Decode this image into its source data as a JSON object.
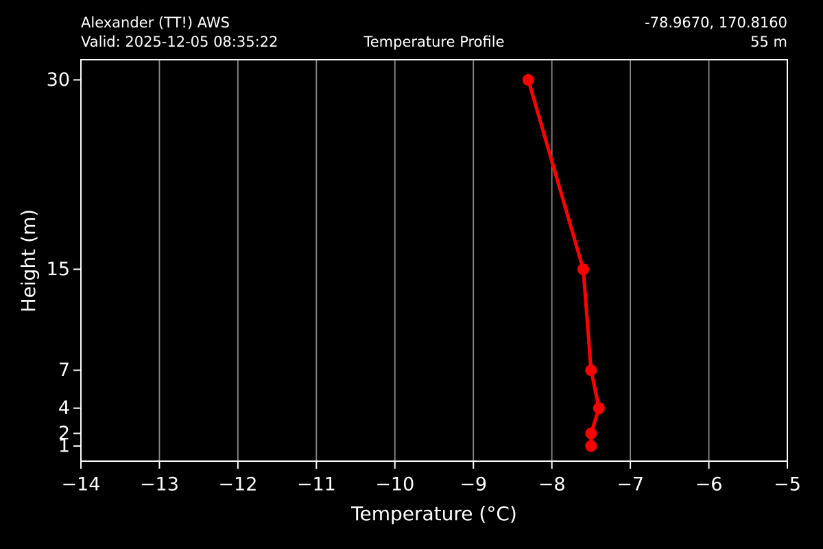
{
  "header": {
    "station": "Alexander (TT!) AWS",
    "valid": "Valid: 2025-12-05 08:35:22",
    "title": "Temperature Profile",
    "coordinates": "-78.9670, 170.8160",
    "elevation": "55 m"
  },
  "chart_data": {
    "type": "line",
    "title": "Temperature Profile",
    "xlabel": "Temperature (°C)",
    "ylabel": "Height (m)",
    "xlim": [
      -14,
      -5
    ],
    "ylim": [
      -0.2,
      31.6
    ],
    "xticks": [
      -14,
      -13,
      -12,
      -11,
      -10,
      -9,
      -8,
      -7,
      -6,
      -5
    ],
    "xtick_labels": [
      "−14",
      "−13",
      "−12",
      "−11",
      "−10",
      "−9",
      "−8",
      "−7",
      "−6",
      "−5"
    ],
    "yticks": [
      1,
      2,
      4,
      7,
      15,
      30
    ],
    "ytick_labels": [
      "1",
      "2",
      "4",
      "7",
      "15",
      "30"
    ],
    "grid": {
      "vertical": true,
      "horizontal": false
    },
    "legend": "none",
    "series": [
      {
        "name": "temperature-profile",
        "color": "#ff0000",
        "marker": "circle",
        "heights_m": [
          1,
          2,
          4,
          7,
          15,
          30
        ],
        "temps_c": [
          -7.5,
          -7.5,
          -7.4,
          -7.5,
          -7.6,
          -8.3
        ]
      }
    ],
    "colors": {
      "background": "#000000",
      "text": "#ffffff",
      "spine": "#ffffff",
      "grid": "#888888",
      "line": "#ff0000"
    }
  }
}
